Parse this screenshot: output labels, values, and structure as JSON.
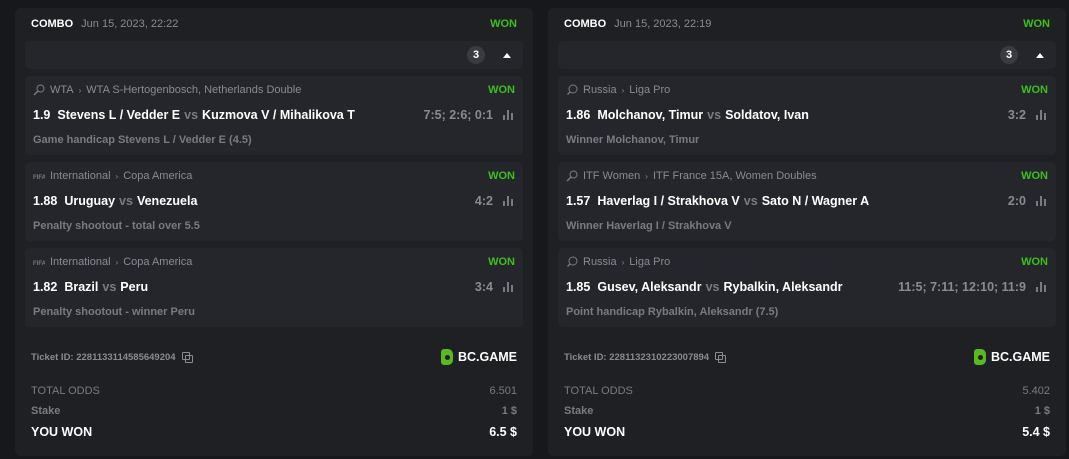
{
  "colors": {
    "won": "#3bc117",
    "brand": "#5ab91d"
  },
  "tickets": [
    {
      "type": "COMBO",
      "date": "Jun 15, 2023, 22:22",
      "status": "WON",
      "count": "3",
      "legs": [
        {
          "sport_icon": "tennis-icon",
          "category": "WTA",
          "tournament": "WTA S-Hertogenbosch, Netherlands Double",
          "status": "WON",
          "odds": "1.9",
          "home": "Stevens L / Vedder E",
          "vs": "vs",
          "away": "Kuzmova V / Mihalikova T",
          "score": "7:5; 2:6; 0:1",
          "market": "Game handicap Stevens L / Vedder E (4.5)"
        },
        {
          "sport_icon": "fifa-icon",
          "category": "International",
          "tournament": "Copa America",
          "status": "WON",
          "odds": "1.88",
          "home": "Uruguay",
          "vs": "vs",
          "away": "Venezuela",
          "score": "4:2",
          "market": "Penalty shootout - total over 5.5"
        },
        {
          "sport_icon": "fifa-icon",
          "category": "International",
          "tournament": "Copa America",
          "status": "WON",
          "odds": "1.82",
          "home": "Brazil",
          "vs": "vs",
          "away": "Peru",
          "score": "3:4",
          "market": "Penalty shootout - winner Peru"
        }
      ],
      "ticket_id": "Ticket ID: 2281133114585649204",
      "brand": "BC.GAME",
      "total_odds_label": "TOTAL ODDS",
      "total_odds": "6.501",
      "stake_label": "Stake",
      "stake": "1 $",
      "won_label": "YOU WON",
      "won": "6.5 $"
    },
    {
      "type": "COMBO",
      "date": "Jun 15, 2023, 22:19",
      "status": "WON",
      "count": "3",
      "legs": [
        {
          "sport_icon": "table-tennis-icon",
          "category": "Russia",
          "tournament": "Liga Pro",
          "status": "WON",
          "odds": "1.86",
          "home": "Molchanov, Timur",
          "vs": "vs",
          "away": "Soldatov, Ivan",
          "score": "3:2",
          "market": "Winner Molchanov, Timur"
        },
        {
          "sport_icon": "tennis-icon",
          "category": "ITF Women",
          "tournament": "ITF France 15A, Women Doubles",
          "status": "WON",
          "odds": "1.57",
          "home": "Haverlag I / Strakhova V",
          "vs": "vs",
          "away": "Sato N / Wagner A",
          "score": "2:0",
          "market": "Winner Haverlag I / Strakhova V"
        },
        {
          "sport_icon": "table-tennis-icon",
          "category": "Russia",
          "tournament": "Liga Pro",
          "status": "WON",
          "odds": "1.85",
          "home": "Gusev, Aleksandr",
          "vs": "vs",
          "away": "Rybalkin, Aleksandr",
          "score": "11:5; 7:11; 12:10; 11:9",
          "market": "Point handicap Rybalkin, Aleksandr (7.5)"
        }
      ],
      "ticket_id": "Ticket ID: 2281132310223007894",
      "brand": "BC.GAME",
      "total_odds_label": "TOTAL ODDS",
      "total_odds": "5.402",
      "stake_label": "Stake",
      "stake": "1 $",
      "won_label": "YOU WON",
      "won": "5.4 $"
    }
  ]
}
